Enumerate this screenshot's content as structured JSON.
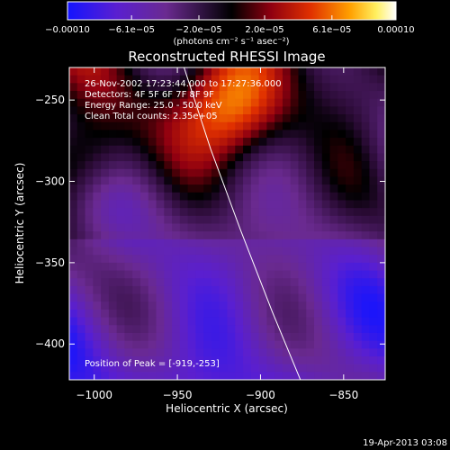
{
  "chart_data": {
    "type": "heatmap",
    "title": "Reconstructed RHESSI Image",
    "xlabel": "Heliocentric X (arcsec)",
    "ylabel": "Heliocentric Y (arcsec)",
    "xlim": [
      -1015,
      -825
    ],
    "ylim": [
      -422,
      -230
    ],
    "x_ticks": [
      {
        "value": -1000,
        "label": "−1000"
      },
      {
        "value": -950,
        "label": "−950"
      },
      {
        "value": -900,
        "label": "−900"
      },
      {
        "value": -850,
        "label": "−850"
      }
    ],
    "y_ticks": [
      {
        "value": -250,
        "label": "−250"
      },
      {
        "value": -300,
        "label": "−300"
      },
      {
        "value": -350,
        "label": "−350"
      },
      {
        "value": -400,
        "label": "−400"
      }
    ],
    "colorbar": {
      "range": [
        -0.0001,
        0.0001
      ],
      "ticks": [
        {
          "value": -0.0001,
          "label": "−0.00010"
        },
        {
          "value": -6.1e-05,
          "label": "−6.1e−05"
        },
        {
          "value": -2e-05,
          "label": "−2.0e−05"
        },
        {
          "value": 2e-05,
          "label": "2.0e−05"
        },
        {
          "value": 6.1e-05,
          "label": "6.1e−05"
        },
        {
          "value": 0.0001,
          "label": "0.00010"
        }
      ],
      "unit_label": "(photons cm⁻² s⁻¹ asec⁻²)"
    },
    "annotations": [
      "26-Nov-2002 17:23:44.000 to 17:27:36.000",
      "Detectors: 4F 5F 6F 7F 8F 9F",
      "Energy Range: 25.0 - 50.0 keV",
      "Clean    Total counts: 2.35e+05"
    ],
    "peak_label": "Position of Peak = [-919,-253]",
    "peak": {
      "x": -919,
      "y": -253
    },
    "limb_curve": [
      {
        "x": -946,
        "y": -230
      },
      {
        "x": -930,
        "y": -280
      },
      {
        "x": -912,
        "y": -330
      },
      {
        "x": -893,
        "y": -380
      },
      {
        "x": -876,
        "y": -422
      }
    ],
    "footer": "19-Apr-2013 03:08",
    "colors": {
      "background": "#000000",
      "foreground": "#ffffff",
      "colormap_low": "#1010ff",
      "colormap_mid": "#000000",
      "colormap_high": "#ffffff"
    }
  }
}
